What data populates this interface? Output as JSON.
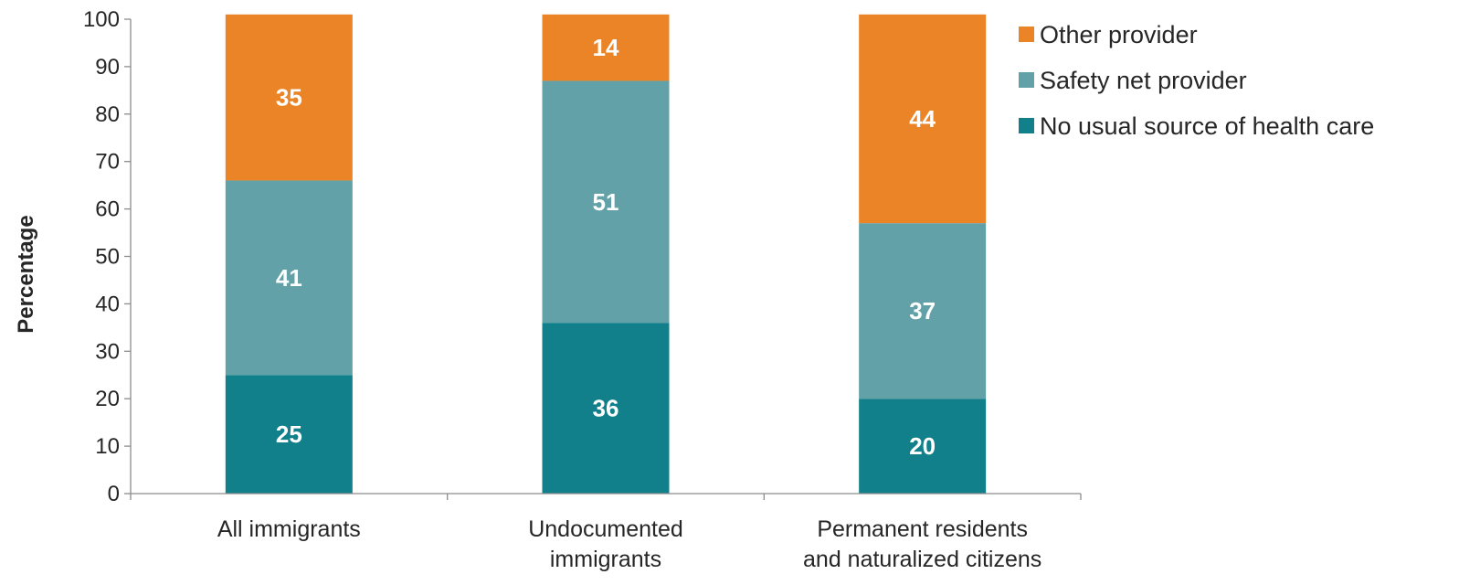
{
  "chart_data": {
    "type": "bar",
    "stacked": true,
    "categories": [
      [
        "All immigrants"
      ],
      [
        "Undocumented",
        "immigrants"
      ],
      [
        "Permanent residents",
        "and naturalized citizens"
      ]
    ],
    "series": [
      {
        "name": "No usual source of health care",
        "values": [
          25,
          36,
          20
        ],
        "color": "#11808A"
      },
      {
        "name": "Safety net provider",
        "values": [
          41,
          51,
          37
        ],
        "color": "#62A1A8"
      },
      {
        "name": "Other provider",
        "values": [
          35,
          14,
          44
        ],
        "color": "#EA8427"
      }
    ],
    "title": "",
    "xlabel": "",
    "ylabel": "Percentage",
    "ylim": [
      0,
      100
    ],
    "yticks": [
      0,
      10,
      20,
      30,
      40,
      50,
      60,
      70,
      80,
      90,
      100
    ],
    "grid": false,
    "legend": {
      "placement": "top-right",
      "order": [
        "Other provider",
        "Safety net provider",
        "No usual source of health care"
      ]
    }
  }
}
